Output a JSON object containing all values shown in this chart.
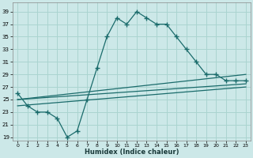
{
  "xlabel": "Humidex (Indice chaleur)",
  "background_color": "#cce8e8",
  "grid_color": "#aad4d0",
  "line_color": "#1a6b6b",
  "xlim": [
    -0.5,
    23.5
  ],
  "ylim": [
    18.5,
    40.5
  ],
  "yticks": [
    19,
    21,
    23,
    25,
    27,
    29,
    31,
    33,
    35,
    37,
    39
  ],
  "xticks": [
    0,
    1,
    2,
    3,
    4,
    5,
    6,
    7,
    8,
    9,
    10,
    11,
    12,
    13,
    14,
    15,
    16,
    17,
    18,
    19,
    20,
    21,
    22,
    23
  ],
  "main_x": [
    0,
    1,
    2,
    3,
    4,
    5,
    6,
    7,
    8,
    9,
    10,
    11,
    12,
    13,
    14,
    15,
    16,
    17,
    18,
    19,
    20,
    21,
    22,
    23
  ],
  "main_y": [
    26,
    24,
    23,
    23,
    22,
    19,
    20,
    25,
    30,
    35,
    38,
    37,
    39,
    38,
    37,
    37,
    35,
    33,
    31,
    29,
    29,
    28,
    28,
    28
  ],
  "trend1_x": [
    0,
    23
  ],
  "trend1_y": [
    25,
    29
  ],
  "trend2_x": [
    0,
    23
  ],
  "trend2_y": [
    25,
    27.5
  ],
  "trend3_x": [
    0,
    23
  ],
  "trend3_y": [
    24,
    27
  ]
}
